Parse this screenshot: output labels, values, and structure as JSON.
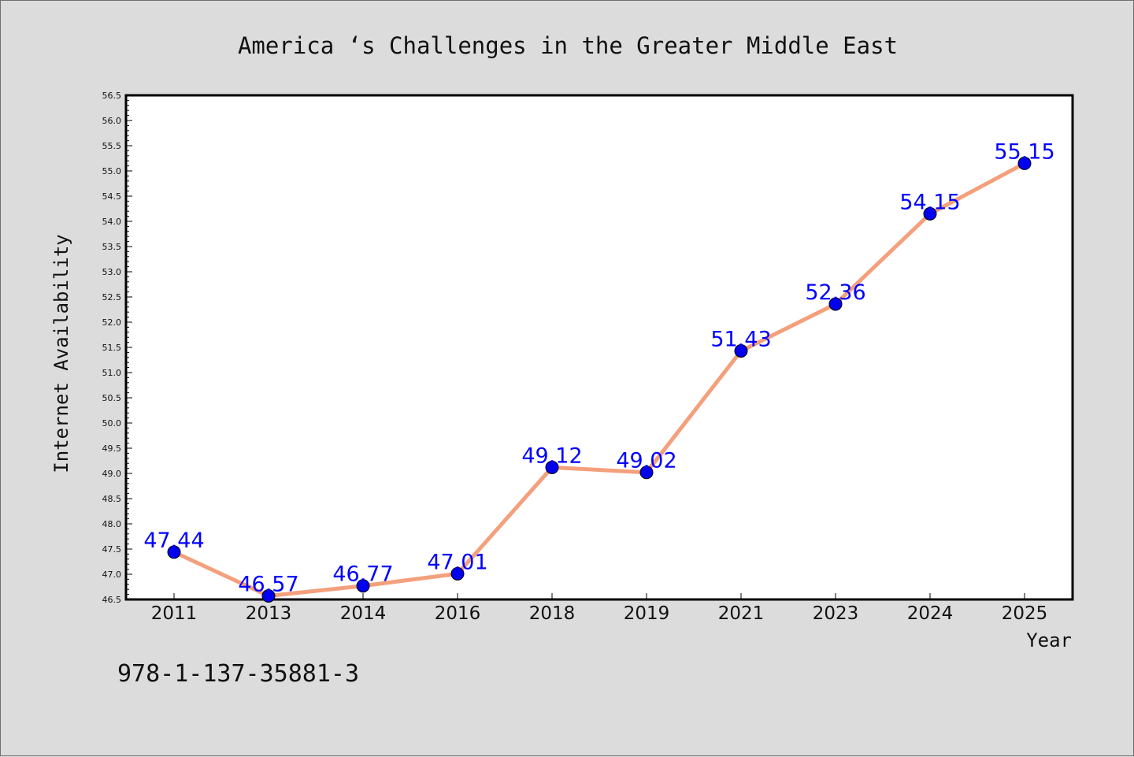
{
  "chart_data": {
    "type": "line",
    "title": "America ‘s Challenges in the Greater Middle East",
    "xlabel": "Year",
    "ylabel": "Internet Availability",
    "categories": [
      "2011",
      "2013",
      "2014",
      "2016",
      "2018",
      "2019",
      "2021",
      "2023",
      "2024",
      "2025"
    ],
    "series": [
      {
        "values": [
          47.44,
          46.57,
          46.77,
          47.01,
          49.12,
          49.02,
          51.43,
          52.36,
          54.15,
          55.15
        ]
      }
    ],
    "data_labels": [
      "47.44",
      "46.57",
      "46.77",
      "47.01",
      "49.12",
      "49.02",
      "51.43",
      "52.36",
      "54.15",
      "55.15"
    ],
    "ylim": [
      46.5,
      56.5
    ],
    "y_tick_labels": [
      "46.5",
      "47.0",
      "47.5",
      "48.0",
      "48.5",
      "49.0",
      "49.5",
      "50.0",
      "50.5",
      "51.0",
      "51.5",
      "52.0",
      "52.5",
      "53.0",
      "53.5",
      "54.0",
      "54.5",
      "55.0",
      "55.5",
      "56.0",
      "56.5"
    ],
    "grid": false,
    "line_color": "#f4a07c",
    "marker_color": "#0000ee",
    "label_color": "#0000ff"
  },
  "footer_code": "978-1-137-35881-3"
}
